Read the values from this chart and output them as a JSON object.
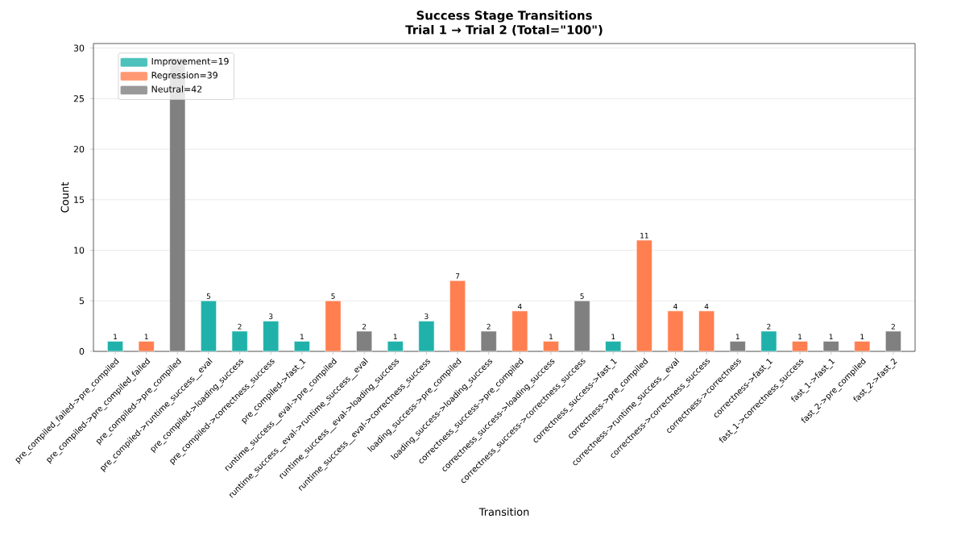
{
  "chart_data": {
    "type": "bar",
    "title": "Success Stage Transitions",
    "subtitle": "Trial 1 → Trial 2 (Total=\"100\")",
    "xlabel": "Transition",
    "ylabel": "Count",
    "categories": [
      "pre_compiled_failed->pre_compiled",
      "pre_compiled->pre_compiled_failed",
      "pre_compiled->pre_compiled",
      "pre_compiled->runtime_success__eval",
      "pre_compiled->loading_success",
      "pre_compiled->correctness_success",
      "pre_compiled->fast_1",
      "runtime_success__eval->pre_compiled",
      "runtime_success__eval->runtime_success__eval",
      "runtime_success__eval->loading_success",
      "runtime_success__eval->correctness_success",
      "loading_success->pre_compiled",
      "loading_success->loading_success",
      "correctness_success->pre_compiled",
      "correctness_success->loading_success",
      "correctness_success->correctness_success",
      "correctness_success->fast_1",
      "correctness->pre_compiled",
      "correctness->runtime_success__eval",
      "correctness->correctness_success",
      "correctness->correctness",
      "correctness->fast_1",
      "fast_1->correctness_success",
      "fast_1->fast_1",
      "fast_2->pre_compiled",
      "fast_2->fast_2"
    ],
    "series": [
      {
        "name": "Improvement=19",
        "color": "#20b2aa",
        "values": [
          1,
          null,
          null,
          5,
          2,
          3,
          1,
          null,
          null,
          1,
          3,
          null,
          null,
          null,
          null,
          null,
          1,
          null,
          null,
          null,
          null,
          2,
          null,
          null,
          null,
          null
        ],
        "value_labels": [
          "1",
          null,
          null,
          "5",
          "2",
          "3",
          "1",
          null,
          null,
          "1",
          "3",
          null,
          null,
          null,
          null,
          null,
          "1",
          null,
          null,
          null,
          null,
          "2",
          null,
          null,
          null,
          null
        ]
      },
      {
        "name": "Regression=39",
        "color": "#ff7f50",
        "values": [
          null,
          1,
          null,
          null,
          null,
          null,
          null,
          5,
          null,
          null,
          null,
          7,
          null,
          4,
          1,
          null,
          null,
          11,
          4,
          4,
          null,
          null,
          1,
          null,
          1,
          null
        ],
        "value_labels": [
          null,
          "1",
          null,
          null,
          null,
          null,
          null,
          "5",
          null,
          null,
          null,
          "7",
          null,
          "4",
          "1",
          null,
          null,
          "11",
          "4",
          "4",
          null,
          null,
          "1",
          null,
          "1",
          null
        ]
      },
      {
        "name": "Neutral=42",
        "color": "#808080",
        "values": [
          null,
          null,
          29,
          null,
          null,
          null,
          null,
          null,
          2,
          null,
          null,
          null,
          2,
          null,
          null,
          5,
          null,
          null,
          null,
          null,
          1,
          null,
          null,
          1,
          null,
          2
        ],
        "value_labels": [
          null,
          null,
          null,
          null,
          null,
          null,
          null,
          null,
          "2",
          null,
          null,
          null,
          "2",
          null,
          null,
          "5",
          null,
          null,
          null,
          null,
          "1",
          null,
          null,
          "1",
          null,
          "2"
        ]
      }
    ],
    "ylim": [
      0,
      30.45
    ],
    "yticks": [
      0,
      5,
      10,
      15,
      20,
      25,
      30
    ],
    "grid": "y",
    "legend": "top left"
  }
}
